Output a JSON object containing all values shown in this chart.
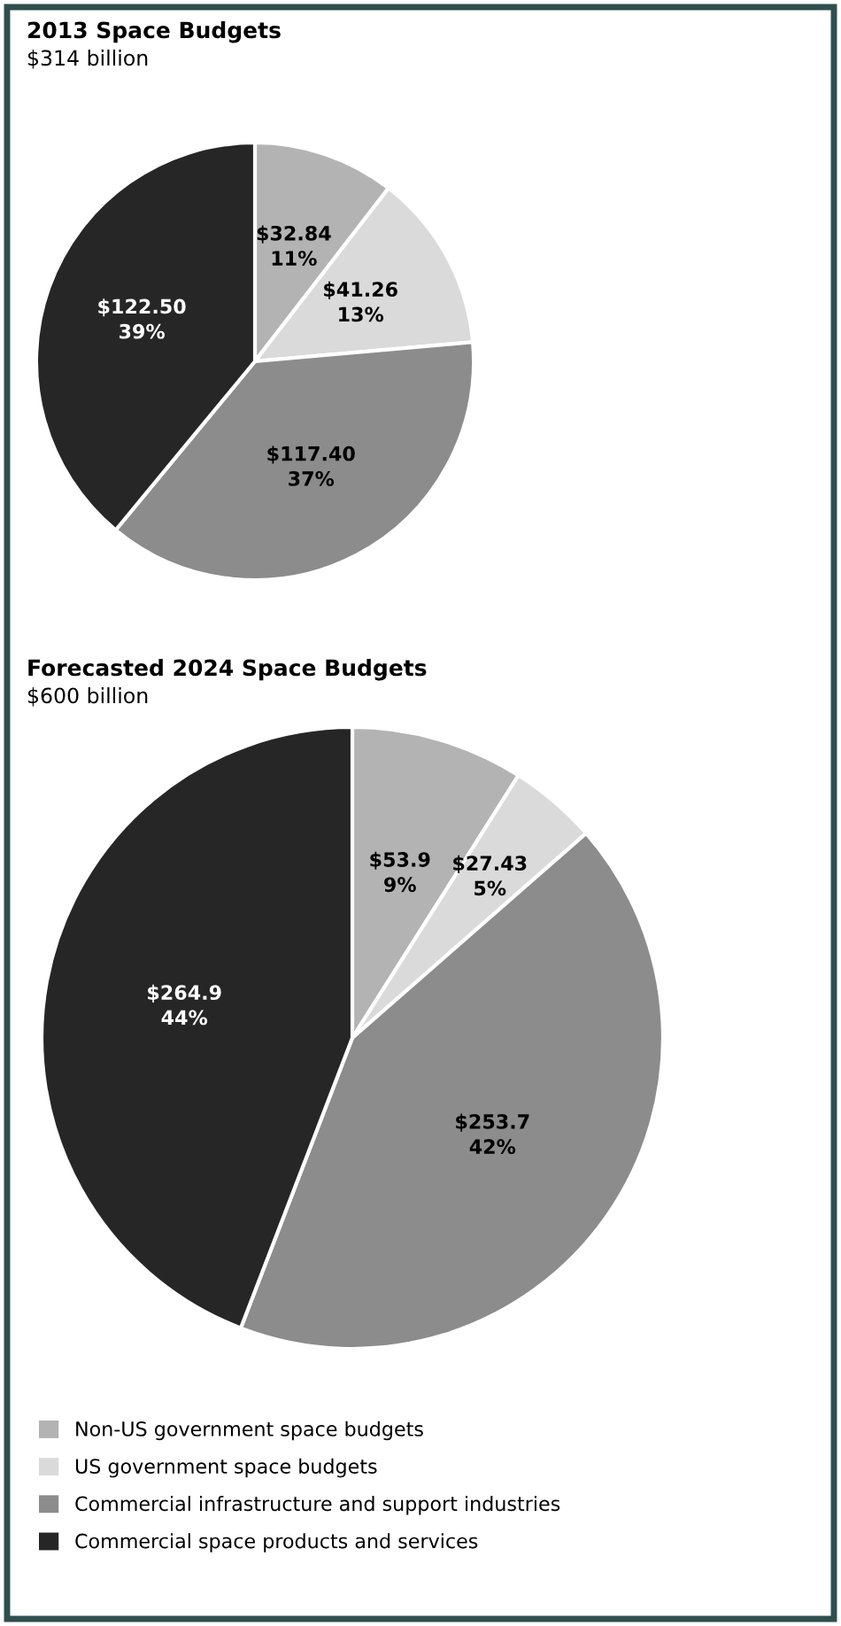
{
  "chart_data": [
    {
      "type": "pie",
      "title": "2013 Space Budgets",
      "subtitle": "$314 billion",
      "categories": [
        null,
        null,
        null,
        null
      ],
      "values": [
        32.84,
        41.26,
        117.4,
        122.5
      ],
      "value_labels": [
        "$32.84\n11%",
        "$41.26\n13%",
        "$117.40\n37%",
        "$122.50\n39%"
      ],
      "colors": [
        "#b3b3b3",
        "#dadada",
        "#8c8c8c",
        "#262626"
      ],
      "legend": false
    },
    {
      "type": "pie",
      "title": "Forecasted 2024 Space Budgets",
      "subtitle": "$600 billion",
      "categories": [
        "Non-US government space budgets",
        "US government space budgets",
        "Commercial infrastructure and support industries",
        "Commercial space products and services"
      ],
      "values": [
        53.9,
        27.43,
        253.7,
        264.9
      ],
      "value_labels": [
        "$53.9\n9%",
        "$27.43\n5%",
        "$253.7\n42%",
        "$264.9\n44%"
      ],
      "colors": [
        "#b3b3b3",
        "#dadada",
        "#8c8c8c",
        "#262626"
      ],
      "legend": "bottom"
    }
  ]
}
